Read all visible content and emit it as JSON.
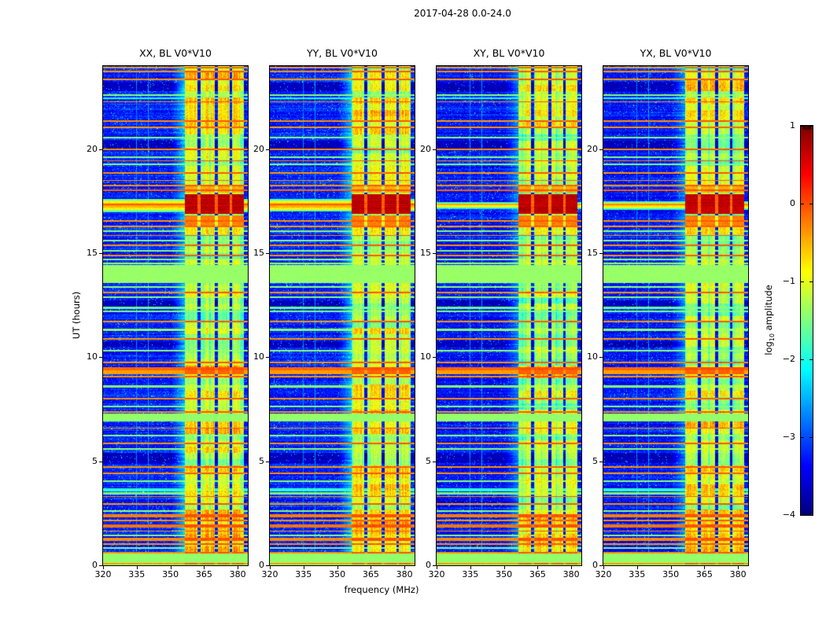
{
  "figure": {
    "title": "2017-04-28 0.0-24.0"
  },
  "axes": {
    "xlabel": "frequency (MHz)",
    "ylabel": "UT (hours)"
  },
  "colorbar": {
    "label_prefix": "log",
    "label_sub": "10",
    "label_suffix": " amplitude",
    "tick_labels": [
      "1",
      "0",
      "−1",
      "−2",
      "−3",
      "−4"
    ]
  },
  "chart_data": {
    "type": "heatmap",
    "title": "2017-04-28 0.0-24.0",
    "xlabel": "frequency (MHz)",
    "ylabel": "UT (hours)",
    "x_range": [
      320,
      384.5
    ],
    "y_range": [
      0,
      24
    ],
    "x_ticks": [
      320,
      335,
      350,
      365,
      380
    ],
    "y_ticks": [
      0,
      5,
      10,
      15,
      20
    ],
    "colormap": "jet",
    "value_range": [
      -4,
      1
    ],
    "colorbar_ticks": [
      1,
      0,
      -1,
      -2,
      -3,
      -4
    ],
    "colorbar_label": "log10 amplitude",
    "legend": "none",
    "grid": false,
    "panels": [
      {
        "title": "XX, BL V0*V10",
        "seed": 101,
        "bg_offset": 0,
        "rfi_gain": 0.05,
        "shoulder_gain": 0,
        "sun_wing_level": -0.45,
        "sun_wing_half": 0.32,
        "sun_core_level": -0.08
      },
      {
        "title": "YY, BL V0*V10",
        "seed": 202,
        "bg_offset": 0,
        "rfi_gain": 0.1,
        "shoulder_gain": 0,
        "sun_wing_level": -0.42,
        "sun_wing_half": 0.3,
        "sun_core_level": -0.08
      },
      {
        "title": "XY, BL V0*V10",
        "seed": 303,
        "bg_offset": -0.08,
        "rfi_gain": -0.12,
        "shoulder_gain": -0.3,
        "sun_wing_level": -0.8,
        "sun_wing_half": 0.16,
        "sun_core_level": -0.45
      },
      {
        "title": "YX, BL V0*V10",
        "seed": 404,
        "bg_offset": -0.05,
        "rfi_gain": -0.05,
        "shoulder_gain": -0.2,
        "sun_wing_level": -0.65,
        "sun_wing_half": 0.2,
        "sun_core_level": -0.3
      }
    ],
    "features": {
      "background": {
        "base": -3.25,
        "row_noise": 0.5,
        "pixel_noise": 0.6,
        "speckle_prob": 0.025,
        "speckle_boost": 1.4
      },
      "solid_bands": [
        [
          0,
          0.55,
          -1.4
        ],
        [
          6.92,
          7.3,
          -1.4
        ],
        [
          13.55,
          14.45,
          -1.38
        ]
      ],
      "dark_bands": [
        [
          22.78,
          23.22
        ],
        [
          19.9,
          20.42
        ],
        [
          12.45,
          12.75
        ],
        [
          10.48,
          10.78
        ],
        [
          4.92,
          5.42
        ]
      ],
      "v_lines": [
        [
          334.8,
          -2.7
        ],
        [
          340.2,
          -2.6
        ],
        [
          345.6,
          -2.7
        ],
        [
          351.2,
          -2.5
        ]
      ],
      "h_lines": [
        [
          23.93,
          0.03,
          -0.4
        ],
        [
          23.72,
          0.035,
          -0.35
        ],
        [
          23.35,
          0.03,
          -0.35
        ],
        [
          22.6,
          0.05,
          -1.45
        ],
        [
          22.45,
          0.04,
          -2.0
        ],
        [
          22.28,
          0.03,
          -0.35
        ],
        [
          21.35,
          0.05,
          -0.35
        ],
        [
          21.05,
          0.03,
          -0.4
        ],
        [
          20.55,
          0.04,
          -1.45
        ],
        [
          20.0,
          0.03,
          -0.35
        ],
        [
          19.62,
          0.03,
          -1.45
        ],
        [
          19.45,
          0.03,
          -0.35
        ],
        [
          19.28,
          0.03,
          -1.5
        ],
        [
          18.85,
          0.03,
          -0.35
        ],
        [
          18.5,
          0.03,
          -0.4
        ],
        [
          18.25,
          0.03,
          -0.35
        ],
        [
          18.02,
          0.04,
          -0.12
        ],
        [
          16.55,
          0.03,
          -0.35
        ],
        [
          16.3,
          0.03,
          -0.4
        ],
        [
          16.05,
          0.04,
          -1.45
        ],
        [
          15.85,
          0.03,
          -0.35
        ],
        [
          15.62,
          0.04,
          -1.45
        ],
        [
          15.38,
          0.03,
          -0.35
        ],
        [
          15.12,
          0.04,
          -1.45
        ],
        [
          14.9,
          0.03,
          -0.35
        ],
        [
          14.7,
          0.03,
          -1.45
        ],
        [
          14.52,
          0.03,
          -1.4
        ],
        [
          13.38,
          0.04,
          -1.45
        ],
        [
          13.12,
          0.03,
          -0.35
        ],
        [
          12.88,
          0.04,
          -1.45
        ],
        [
          12.38,
          0.04,
          -1.6
        ],
        [
          12.22,
          0.04,
          -1.5
        ],
        [
          11.72,
          0.03,
          -0.35
        ],
        [
          11.32,
          0.04,
          -1.45
        ],
        [
          10.88,
          0.03,
          -0.35
        ],
        [
          10.32,
          0.04,
          -1.45
        ],
        [
          9.75,
          0.03,
          -0.35
        ],
        [
          9.45,
          0.06,
          -0.12
        ],
        [
          9.28,
          0.08,
          -0.4
        ],
        [
          9.06,
          0.03,
          -0.35
        ],
        [
          8.6,
          0.04,
          -1.45
        ],
        [
          8.02,
          0.03,
          -0.35
        ],
        [
          7.62,
          0.04,
          -1.45
        ],
        [
          7.38,
          0.03,
          -0.35
        ],
        [
          6.6,
          0.03,
          -0.35
        ],
        [
          6.22,
          0.04,
          -1.45
        ],
        [
          5.85,
          0.03,
          -0.35
        ],
        [
          5.6,
          0.04,
          -1.45
        ],
        [
          4.72,
          0.03,
          -0.35
        ],
        [
          4.42,
          0.03,
          -0.35
        ],
        [
          4.05,
          0.04,
          -1.45
        ],
        [
          3.62,
          0.07,
          -1.9
        ],
        [
          3.45,
          0.05,
          -1.5
        ],
        [
          3.3,
          0.03,
          -0.35
        ],
        [
          2.95,
          0.03,
          -0.35
        ],
        [
          2.62,
          0.04,
          -1.45
        ],
        [
          2.38,
          0.08,
          -0.25
        ],
        [
          2.15,
          0.03,
          -0.35
        ],
        [
          1.9,
          0.07,
          -0.2
        ],
        [
          1.65,
          0.03,
          -0.35
        ],
        [
          1.45,
          0.04,
          -1.45
        ],
        [
          1.25,
          0.07,
          -0.3
        ],
        [
          1.02,
          0.03,
          -0.35
        ],
        [
          0.82,
          0.04,
          -1.45
        ],
        [
          0.62,
          0.04,
          -0.35
        ],
        [
          0.06,
          0.04,
          -0.35
        ]
      ],
      "rfi": {
        "f0": 356.6,
        "f1": 382.8,
        "gaps": [
          [
            362.1,
            363.3
          ],
          [
            369.9,
            371.1
          ],
          [
            376.4,
            377.5
          ]
        ],
        "base": -1.25,
        "block_hours": 0.3,
        "block_var": 0.7,
        "stripe_var": 0.5,
        "shoulder": {
          "f0": 350.8,
          "f1": 356.6,
          "level": -2.4
        },
        "hot_intervals": [
          [
            22.9,
            23.75,
            0.5
          ],
          [
            21.7,
            22.45,
            0.55
          ],
          [
            20.8,
            21.45,
            0.4
          ],
          [
            18.3,
            19.05,
            0.35
          ],
          [
            15.9,
            16.65,
            0.5
          ],
          [
            13.0,
            13.45,
            0.3
          ],
          [
            11.0,
            11.5,
            0.3
          ],
          [
            9.0,
            9.65,
            0.6
          ],
          [
            8.25,
            8.8,
            0.35
          ],
          [
            6.3,
            7.45,
            0.5
          ],
          [
            5.4,
            6.0,
            0.3
          ],
          [
            3.2,
            4.7,
            0.5
          ],
          [
            0.45,
            2.55,
            0.6
          ]
        ]
      },
      "sun": {
        "center_t": 17.3,
        "core_t": 17.35,
        "core_half": 0.05,
        "rfi_block": {
          "t0": 16.88,
          "t1": 17.85,
          "level": 0.7
        },
        "rfi_rows": [
          [
            16.3,
            16.8,
            -0.25
          ],
          [
            17.9,
            18.25,
            -0.45
          ]
        ]
      }
    }
  }
}
